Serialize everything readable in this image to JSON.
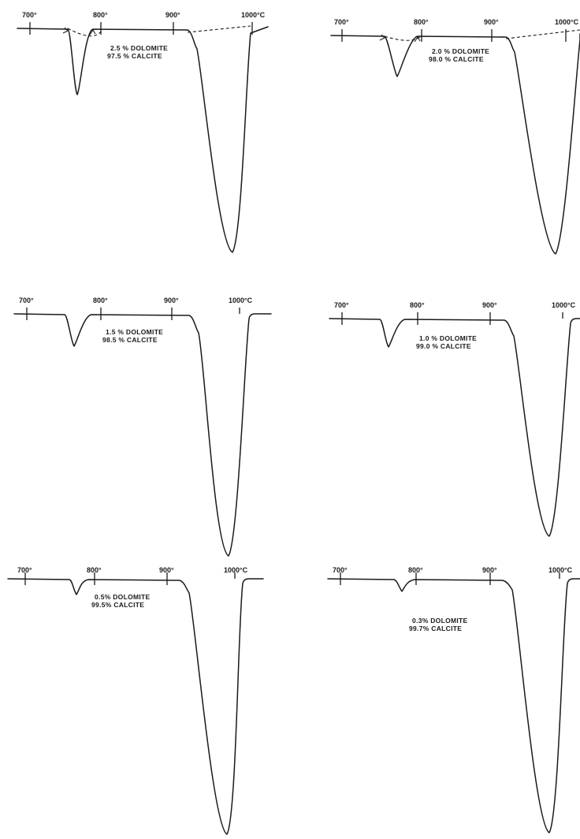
{
  "chart_data": [
    {
      "type": "line",
      "panel": "top-left",
      "tick_labels": [
        "700°",
        "800°",
        "900°",
        "1000°C"
      ],
      "x_ticks": [
        700,
        800,
        900,
        1000
      ],
      "composition": {
        "dolomite": "2.5 % DOLOMITE",
        "calcite": "97.5 % CALCITE"
      },
      "dolomite_peak": {
        "temp": 765,
        "depth": 0.35
      },
      "calcite_peak": {
        "temp": 970,
        "depth": 1.0
      },
      "dashed_baseline": true
    },
    {
      "type": "line",
      "panel": "top-right",
      "tick_labels": [
        "700°",
        "800°",
        "900°",
        "1000°C"
      ],
      "x_ticks": [
        700,
        800,
        900,
        1000
      ],
      "composition": {
        "dolomite": "2.0 % DOLOMITE",
        "calcite": "98.0 % CALCITE"
      },
      "dolomite_peak": {
        "temp": 773,
        "depth": 0.22
      },
      "calcite_peak": {
        "temp": 990,
        "depth": 1.0
      },
      "dashed_baseline": true
    },
    {
      "type": "line",
      "panel": "middle-left",
      "tick_labels": [
        "700°",
        "800°",
        "900°",
        "1000°C"
      ],
      "x_ticks": [
        700,
        800,
        900,
        1000
      ],
      "composition": {
        "dolomite": "1.5 % DOLOMITE",
        "calcite": "98.5 % CALCITE"
      },
      "dolomite_peak": {
        "temp": 765,
        "depth": 0.11
      },
      "calcite_peak": {
        "temp": 982,
        "depth": 1.0
      },
      "dashed_baseline": false
    },
    {
      "type": "line",
      "panel": "middle-right",
      "tick_labels": [
        "700°",
        "800°",
        "900°",
        "1000°C"
      ],
      "x_ticks": [
        700,
        800,
        900,
        1000
      ],
      "composition": {
        "dolomite": "1.0 % DOLOMITE",
        "calcite": "99.0 % CALCITE"
      },
      "dolomite_peak": {
        "temp": 774,
        "depth": 0.1
      },
      "calcite_peak": {
        "temp": 985,
        "depth": 1.0
      },
      "dashed_baseline": false
    },
    {
      "type": "line",
      "panel": "bottom-left",
      "tick_labels": [
        "700°",
        "800°",
        "900°",
        "1000°C"
      ],
      "x_ticks": [
        700,
        800,
        900,
        1000
      ],
      "composition": {
        "dolomite": "0.5% DOLOMITE",
        "calcite": "99.5% CALCITE"
      },
      "dolomite_peak": {
        "temp": 773,
        "depth": 0.06
      },
      "calcite_peak": {
        "temp": 993,
        "depth": 1.0
      },
      "dashed_baseline": false
    },
    {
      "type": "line",
      "panel": "bottom-right",
      "tick_labels": [
        "700°",
        "800°",
        "900°",
        "1000°C"
      ],
      "x_ticks": [
        700,
        800,
        900,
        1000
      ],
      "composition": {
        "dolomite": "0.3% DOLOMITE",
        "calcite": "99.7% CALCITE"
      },
      "dolomite_peak": {
        "temp": 776,
        "depth": 0.04
      },
      "calcite_peak": {
        "temp": 987,
        "depth": 1.0
      },
      "dashed_baseline": false
    }
  ]
}
